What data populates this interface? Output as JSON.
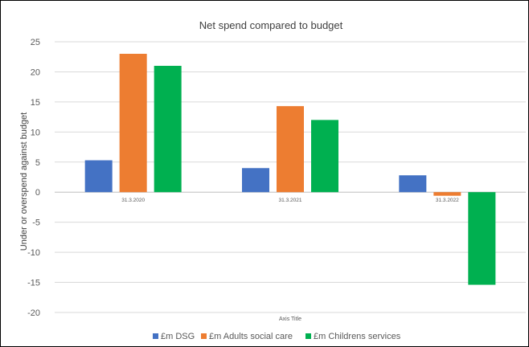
{
  "chart_data": {
    "type": "bar",
    "title": "Net spend compared to budget",
    "xlabel": "Axis Title",
    "ylabel": "Under or overspend against budget",
    "categories": [
      "31.3.2020",
      "31.3.2021",
      "31.3.2022"
    ],
    "ylim": [
      -20,
      25
    ],
    "yticks": [
      25,
      20,
      15,
      10,
      5,
      0,
      -5,
      -10,
      -15,
      -20
    ],
    "grid": true,
    "legend_position": "bottom",
    "series": [
      {
        "name": "£m DSG",
        "color": "#4472C4",
        "values": [
          5.3,
          4.0,
          2.8
        ]
      },
      {
        "name": "£m Adults social care",
        "color": "#ED7D31",
        "values": [
          23.0,
          14.3,
          -0.6
        ]
      },
      {
        "name": "£m Childrens services",
        "color": "#00B050",
        "values": [
          21.0,
          12.0,
          -15.4
        ]
      }
    ]
  }
}
